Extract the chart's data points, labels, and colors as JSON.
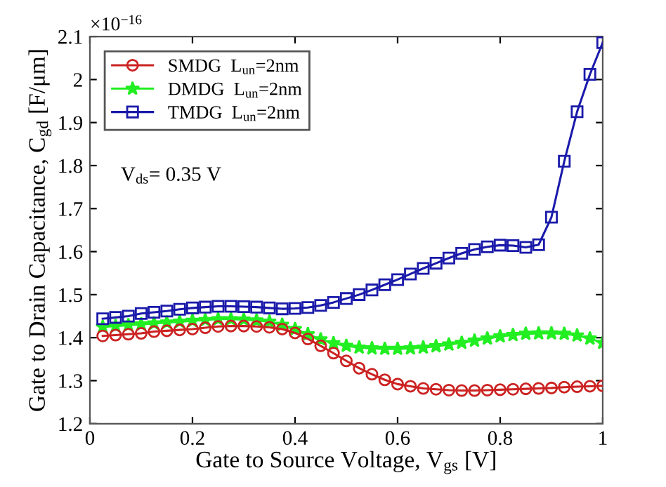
{
  "chart_data": {
    "type": "line",
    "xlabel": "Gate to Source Voltage, V$_{gs}$ [V]",
    "ylabel": "Gate to Drain Capacitance, C$_{gd}$ [F/μm]",
    "annotations": [
      "×10$^{−16}$",
      "V$_{ds}$= 0.35 V"
    ],
    "x": [
      0.025,
      0.05,
      0.075,
      0.1,
      0.125,
      0.15,
      0.175,
      0.2,
      0.225,
      0.25,
      0.275,
      0.3,
      0.325,
      0.35,
      0.375,
      0.4,
      0.425,
      0.45,
      0.475,
      0.5,
      0.525,
      0.55,
      0.575,
      0.6,
      0.625,
      0.65,
      0.675,
      0.7,
      0.725,
      0.75,
      0.775,
      0.8,
      0.825,
      0.85,
      0.875,
      0.9,
      0.925,
      0.95,
      0.975,
      1.0
    ],
    "series": [
      {
        "name": "SMDG  L$_{un}$=2nm",
        "color": "#cc2222",
        "marker": "circle",
        "values": [
          1.404,
          1.406,
          1.408,
          1.41,
          1.414,
          1.416,
          1.418,
          1.42,
          1.423,
          1.426,
          1.427,
          1.427,
          1.426,
          1.424,
          1.42,
          1.411,
          1.397,
          1.381,
          1.364,
          1.346,
          1.329,
          1.315,
          1.302,
          1.292,
          1.287,
          1.282,
          1.28,
          1.278,
          1.277,
          1.277,
          1.278,
          1.279,
          1.28,
          1.281,
          1.282,
          1.283,
          1.285,
          1.286,
          1.287,
          1.288
        ]
      },
      {
        "name": "DMDG  L$_{un}$=2nm",
        "color": "#22ee22",
        "marker": "star",
        "values": [
          1.425,
          1.427,
          1.429,
          1.431,
          1.433,
          1.435,
          1.437,
          1.439,
          1.441,
          1.443,
          1.443,
          1.442,
          1.44,
          1.437,
          1.43,
          1.42,
          1.408,
          1.396,
          1.387,
          1.381,
          1.377,
          1.375,
          1.374,
          1.374,
          1.375,
          1.377,
          1.38,
          1.384,
          1.388,
          1.393,
          1.398,
          1.403,
          1.406,
          1.409,
          1.41,
          1.41,
          1.409,
          1.405,
          1.398,
          1.388
        ]
      },
      {
        "name": "TMDG  L$_{un}$=2nm",
        "color": "#1a1aaa",
        "marker": "square",
        "values": [
          1.444,
          1.447,
          1.45,
          1.456,
          1.459,
          1.462,
          1.466,
          1.469,
          1.471,
          1.473,
          1.473,
          1.472,
          1.471,
          1.469,
          1.467,
          1.468,
          1.47,
          1.475,
          1.482,
          1.491,
          1.5,
          1.511,
          1.523,
          1.535,
          1.548,
          1.561,
          1.573,
          1.585,
          1.596,
          1.605,
          1.611,
          1.615,
          1.614,
          1.61,
          1.616,
          1.68,
          1.81,
          1.925,
          2.012,
          2.086
        ]
      }
    ],
    "xlim": [
      0,
      1
    ],
    "xticks": [
      0,
      0.2,
      0.4,
      0.6,
      0.8,
      1
    ],
    "ylim": [
      1.2,
      2.1
    ],
    "yticks": [
      1.2,
      1.3,
      1.4,
      1.5,
      1.6,
      1.7,
      1.8,
      1.9,
      2,
      2.1
    ],
    "grid": false,
    "legend": "top left",
    "line_style": "solid"
  }
}
